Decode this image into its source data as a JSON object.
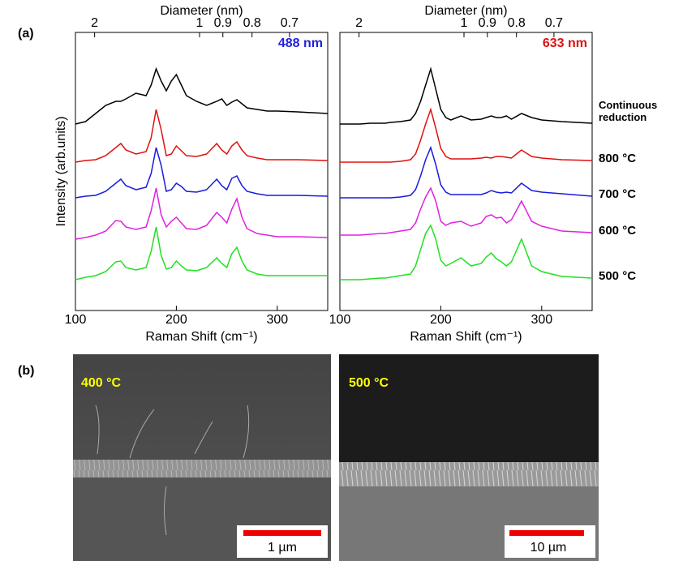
{
  "panel_labels": [
    "(a)",
    "(b)"
  ],
  "chart_data": [
    {
      "type": "line",
      "title": "Diameter (nm)",
      "xlabel": "Raman Shift (cm⁻¹)",
      "ylabel": "Intensity (arb.units)",
      "annotation": {
        "text": "488 nm",
        "color": "#1f1fe0"
      },
      "x": [
        100,
        110,
        120,
        130,
        140,
        145,
        150,
        160,
        170,
        175,
        180,
        185,
        190,
        195,
        200,
        205,
        210,
        220,
        230,
        240,
        245,
        250,
        255,
        260,
        265,
        270,
        280,
        290,
        300,
        320,
        350
      ],
      "xlim": [
        100,
        350
      ],
      "xticks": [
        100,
        200,
        300
      ],
      "ylim": [
        0,
        343
      ],
      "x2ticks": [
        2,
        1,
        0.9,
        0.8,
        0.7
      ],
      "series": [
        {
          "color": "#000000",
          "values": [
            230,
            233,
            243,
            253,
            258,
            258,
            261,
            268,
            265,
            278,
            298,
            283,
            271,
            283,
            291,
            278,
            265,
            258,
            253,
            258,
            261,
            253,
            257,
            260,
            255,
            250,
            248,
            246,
            246,
            245,
            243
          ]
        },
        {
          "color": "#e01010",
          "values": [
            183,
            185,
            186,
            191,
            201,
            206,
            198,
            193,
            196,
            213,
            248,
            223,
            191,
            193,
            203,
            197,
            191,
            190,
            193,
            206,
            198,
            193,
            203,
            208,
            198,
            191,
            188,
            186,
            186,
            186,
            185
          ]
        },
        {
          "color": "#1a1ae0",
          "values": [
            139,
            141,
            142,
            147,
            157,
            162,
            154,
            149,
            152,
            169,
            201,
            179,
            147,
            149,
            157,
            153,
            147,
            146,
            149,
            162,
            154,
            149,
            163,
            166,
            154,
            147,
            144,
            142,
            142,
            142,
            141
          ]
        },
        {
          "color": "#e020e0",
          "values": [
            88,
            90,
            93,
            98,
            111,
            110,
            103,
            100,
            103,
            123,
            151,
            118,
            103,
            110,
            115,
            108,
            101,
            100,
            105,
            121,
            115,
            108,
            125,
            138,
            115,
            101,
            95,
            93,
            91,
            91,
            90
          ]
        },
        {
          "color": "#20e020",
          "values": [
            38,
            41,
            43,
            48,
            60,
            61,
            53,
            50,
            53,
            73,
            103,
            68,
            51,
            53,
            61,
            55,
            50,
            49,
            53,
            65,
            58,
            53,
            70,
            78,
            61,
            50,
            45,
            43,
            43,
            43,
            43
          ]
        }
      ]
    },
    {
      "type": "line",
      "title": "Diameter (nm)",
      "xlabel": "Raman Shift (cm⁻¹)",
      "annotation": {
        "text": "633 nm",
        "color": "#e01010"
      },
      "x": [
        100,
        110,
        120,
        130,
        140,
        145,
        150,
        160,
        170,
        175,
        180,
        185,
        190,
        195,
        200,
        205,
        210,
        220,
        230,
        240,
        245,
        250,
        255,
        260,
        265,
        270,
        280,
        290,
        300,
        320,
        350
      ],
      "xlim": [
        100,
        350
      ],
      "xticks": [
        100,
        200,
        300
      ],
      "ylim": [
        0,
        343
      ],
      "x2ticks": [
        2,
        1,
        0.9,
        0.8,
        0.7
      ],
      "series": [
        {
          "name": "Continuous reduction",
          "color": "#000000",
          "values": [
            230,
            230,
            230,
            231,
            231,
            231,
            232,
            233,
            235,
            243,
            258,
            278,
            298,
            273,
            248,
            238,
            235,
            240,
            235,
            236,
            238,
            240,
            238,
            238,
            240,
            236,
            243,
            238,
            235,
            233,
            231
          ]
        },
        {
          "name": "800 °C",
          "color": "#e01010",
          "values": [
            183,
            183,
            183,
            183,
            183,
            183,
            183,
            184,
            186,
            193,
            210,
            230,
            248,
            225,
            200,
            190,
            187,
            187,
            187,
            188,
            189,
            188,
            190,
            190,
            189,
            188,
            198,
            190,
            188,
            186,
            185
          ]
        },
        {
          "name": "700 °C",
          "color": "#1a1ae0",
          "values": [
            139,
            139,
            139,
            139,
            139,
            139,
            139,
            140,
            142,
            149,
            166,
            186,
            201,
            180,
            155,
            146,
            143,
            143,
            143,
            143,
            145,
            148,
            146,
            145,
            146,
            145,
            157,
            148,
            146,
            144,
            141
          ]
        },
        {
          "name": "600 °C",
          "color": "#e020e0",
          "values": [
            93,
            93,
            93,
            94,
            95,
            95,
            96,
            98,
            100,
            108,
            125,
            140,
            151,
            135,
            110,
            105,
            108,
            110,
            104,
            108,
            116,
            118,
            114,
            115,
            108,
            112,
            135,
            110,
            104,
            98,
            96
          ]
        },
        {
          "name": "500 °C",
          "color": "#20e020",
          "values": [
            38,
            38,
            38,
            39,
            40,
            40,
            41,
            43,
            45,
            55,
            75,
            95,
            105,
            88,
            62,
            55,
            58,
            65,
            55,
            58,
            66,
            71,
            64,
            60,
            55,
            60,
            88,
            55,
            48,
            42,
            40
          ]
        }
      ]
    }
  ],
  "sem_images": [
    {
      "label": "400 °C",
      "scale_bar": "1 µm"
    },
    {
      "label": "500 °C",
      "scale_bar": "10 µm"
    }
  ]
}
